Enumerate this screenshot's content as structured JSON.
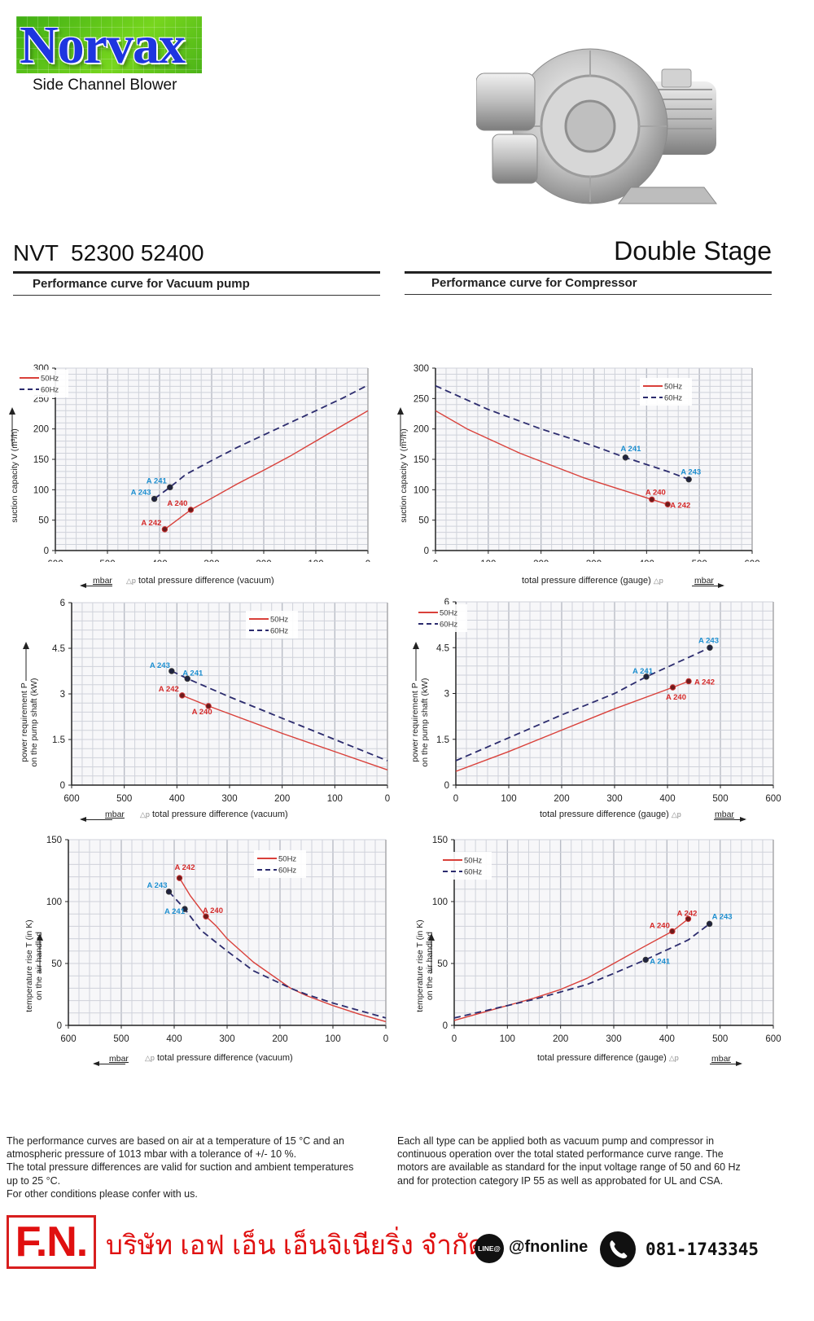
{
  "brand": {
    "logo_text": "Norvax",
    "subtitle": "Side Channel Blower"
  },
  "header": {
    "model": "NVT  52300 52400",
    "stage": "Double Stage",
    "vacuum_section": "Performance curve for Vacuum pump",
    "compressor_section": "Performance curve for Compressor"
  },
  "axis_text": {
    "flow_ylabel": "suction capacity V (m³/h)",
    "power_ylabel_1": "power requirement P",
    "power_ylabel_2": "on the pump shaft (kW)",
    "temp_ylabel_1": "temperature rise T (in K)",
    "temp_ylabel_2": "on the air handled",
    "vacuum_xlabel": "total pressure difference (vacuum)",
    "gauge_xlabel": "total pressure difference (gauge)",
    "delta_p": "△p",
    "unit": "mbar"
  },
  "chart_data": [
    {
      "id": "vacuum-flow",
      "type": "line",
      "title": "Performance curve for Vacuum pump - suction capacity",
      "xlabel": "total pressure difference (vacuum) Δp mbar",
      "ylabel": "suction capacity V (m³/h)",
      "xlim": [
        600,
        0
      ],
      "x_reversed": true,
      "ylim": [
        0,
        300
      ],
      "xticks": [
        600,
        500,
        400,
        300,
        200,
        100,
        0
      ],
      "yticks": [
        0,
        50,
        100,
        150,
        200,
        250,
        300
      ],
      "grid": true,
      "legend_position": "top-left",
      "series": [
        {
          "name": "50Hz",
          "style": "solid",
          "color": "#d9403a",
          "x": [
            390,
            340,
            300,
            250,
            200,
            150,
            100,
            50,
            0
          ],
          "y": [
            35,
            67,
            86,
            110,
            132,
            155,
            180,
            205,
            230
          ]
        },
        {
          "name": "60Hz",
          "style": "dashed",
          "color": "#2c2c6e",
          "x": [
            410,
            380,
            350,
            300,
            250,
            200,
            150,
            100,
            50,
            0
          ],
          "y": [
            85,
            104,
            125,
            148,
            170,
            190,
            210,
            230,
            250,
            272
          ]
        }
      ],
      "points": [
        {
          "label": "A 240",
          "x": 340,
          "y": 67,
          "series": "50Hz"
        },
        {
          "label": "A 242",
          "x": 390,
          "y": 35,
          "series": "50Hz"
        },
        {
          "label": "A 241",
          "x": 380,
          "y": 104,
          "series": "60Hz"
        },
        {
          "label": "A 243",
          "x": 410,
          "y": 85,
          "series": "60Hz"
        }
      ]
    },
    {
      "id": "compressor-flow",
      "type": "line",
      "title": "Performance curve for Compressor - suction capacity",
      "xlabel": "total pressure difference (gauge) Δp mbar",
      "ylabel": "suction capacity V (m³/h)",
      "xlim": [
        0,
        600
      ],
      "x_reversed": false,
      "ylim": [
        0,
        300
      ],
      "xticks": [
        0,
        100,
        200,
        300,
        400,
        500,
        600
      ],
      "yticks": [
        0,
        50,
        100,
        150,
        200,
        250,
        300
      ],
      "grid": true,
      "legend_position": "top-right",
      "series": [
        {
          "name": "50Hz",
          "style": "solid",
          "color": "#d9403a",
          "x": [
            0,
            60,
            160,
            280,
            410,
            440
          ],
          "y": [
            230,
            200,
            160,
            120,
            84,
            76
          ]
        },
        {
          "name": "60Hz",
          "style": "dashed",
          "color": "#2c2c6e",
          "x": [
            0,
            100,
            200,
            300,
            360,
            440,
            480
          ],
          "y": [
            271,
            232,
            200,
            172,
            153,
            130,
            117
          ]
        }
      ],
      "points": [
        {
          "label": "A 240",
          "x": 410,
          "y": 84,
          "series": "50Hz"
        },
        {
          "label": "A 242",
          "x": 440,
          "y": 76,
          "series": "50Hz"
        },
        {
          "label": "A 241",
          "x": 360,
          "y": 153,
          "series": "60Hz"
        },
        {
          "label": "A 243",
          "x": 480,
          "y": 117,
          "series": "60Hz"
        }
      ]
    },
    {
      "id": "vacuum-power",
      "type": "line",
      "title": "Performance curve for Vacuum pump - power requirement",
      "xlabel": "total pressure difference (vacuum) Δp mbar",
      "ylabel": "power requirement P on the pump shaft (kW)",
      "xlim": [
        600,
        0
      ],
      "x_reversed": true,
      "ylim": [
        0,
        6
      ],
      "xticks": [
        600,
        500,
        400,
        300,
        200,
        100,
        0
      ],
      "yticks": [
        0,
        1.5,
        3,
        4.5,
        6
      ],
      "grid": true,
      "legend_position": "top-right",
      "series": [
        {
          "name": "50Hz",
          "style": "solid",
          "color": "#d9403a",
          "x": [
            390,
            340,
            200,
            100,
            0
          ],
          "y": [
            2.95,
            2.6,
            1.7,
            1.1,
            0.5
          ]
        },
        {
          "name": "60Hz",
          "style": "dashed",
          "color": "#2c2c6e",
          "x": [
            410,
            380,
            300,
            200,
            100,
            0
          ],
          "y": [
            3.75,
            3.5,
            2.9,
            2.2,
            1.5,
            0.8
          ]
        }
      ],
      "points": [
        {
          "label": "A 242",
          "x": 390,
          "y": 2.95,
          "series": "50Hz"
        },
        {
          "label": "A 240",
          "x": 340,
          "y": 2.6,
          "series": "50Hz"
        },
        {
          "label": "A 243",
          "x": 410,
          "y": 3.75,
          "series": "60Hz"
        },
        {
          "label": "A 241",
          "x": 380,
          "y": 3.5,
          "series": "60Hz"
        }
      ]
    },
    {
      "id": "compressor-power",
      "type": "line",
      "title": "Performance curve for Compressor - power requirement",
      "xlabel": "total pressure difference (gauge) Δp mbar",
      "ylabel": "power requirement P on the pump shaft (kW)",
      "xlim": [
        0,
        600
      ],
      "x_reversed": false,
      "ylim": [
        0,
        6
      ],
      "xticks": [
        0,
        100,
        200,
        300,
        400,
        500,
        600
      ],
      "yticks": [
        0,
        1.5,
        3,
        4.5,
        6
      ],
      "grid": true,
      "legend_position": "top-left",
      "series": [
        {
          "name": "50Hz",
          "style": "solid",
          "color": "#d9403a",
          "x": [
            0,
            100,
            200,
            300,
            410,
            440
          ],
          "y": [
            0.45,
            1.1,
            1.8,
            2.5,
            3.2,
            3.4
          ]
        },
        {
          "name": "60Hz",
          "style": "dashed",
          "color": "#2c2c6e",
          "x": [
            0,
            100,
            200,
            300,
            360,
            480
          ],
          "y": [
            0.8,
            1.55,
            2.3,
            3.0,
            3.55,
            4.5
          ]
        }
      ],
      "points": [
        {
          "label": "A 240",
          "x": 410,
          "y": 3.2,
          "series": "50Hz"
        },
        {
          "label": "A 242",
          "x": 440,
          "y": 3.4,
          "series": "50Hz"
        },
        {
          "label": "A 241",
          "x": 360,
          "y": 3.55,
          "series": "60Hz"
        },
        {
          "label": "A 243",
          "x": 480,
          "y": 4.5,
          "series": "60Hz"
        }
      ]
    },
    {
      "id": "vacuum-temperature",
      "type": "line",
      "title": "Performance curve for Vacuum pump - temperature rise",
      "xlabel": "total pressure difference (vacuum) Δp mbar",
      "ylabel": "temperature rise T (in K) on the air handled",
      "xlim": [
        600,
        0
      ],
      "x_reversed": true,
      "ylim": [
        0,
        150
      ],
      "xticks": [
        600,
        500,
        400,
        300,
        200,
        100,
        0
      ],
      "yticks": [
        0,
        50,
        100,
        150
      ],
      "grid": true,
      "legend_position": "top-right",
      "series": [
        {
          "name": "50Hz",
          "style": "solid",
          "color": "#d9403a",
          "x": [
            390,
            370,
            340,
            320,
            300,
            250,
            180,
            150,
            100,
            50,
            0
          ],
          "y": [
            119,
            105,
            88,
            80,
            70,
            51,
            30,
            24,
            16,
            9,
            3
          ]
        },
        {
          "name": "60Hz",
          "style": "dashed",
          "color": "#2c2c6e",
          "x": [
            410,
            380,
            350,
            300,
            250,
            180,
            150,
            100,
            50,
            0
          ],
          "y": [
            108,
            94,
            77,
            60,
            44,
            30,
            25,
            18,
            12,
            6
          ]
        }
      ],
      "points": [
        {
          "label": "A 242",
          "x": 390,
          "y": 119,
          "series": "50Hz"
        },
        {
          "label": "A 240",
          "x": 340,
          "y": 88,
          "series": "50Hz"
        },
        {
          "label": "A 243",
          "x": 410,
          "y": 108,
          "series": "60Hz"
        },
        {
          "label": "A 241",
          "x": 380,
          "y": 94,
          "series": "60Hz"
        }
      ]
    },
    {
      "id": "compressor-temperature",
      "type": "line",
      "title": "Performance curve for Compressor - temperature rise",
      "xlabel": "total pressure difference (gauge) Δp mbar",
      "ylabel": "temperature rise T (in K) on the air handled",
      "xlim": [
        0,
        600
      ],
      "x_reversed": false,
      "ylim": [
        0,
        150
      ],
      "xticks": [
        0,
        100,
        200,
        300,
        400,
        500,
        600
      ],
      "yticks": [
        0,
        50,
        100,
        150
      ],
      "grid": true,
      "legend_position": "top-left",
      "series": [
        {
          "name": "50Hz",
          "style": "solid",
          "color": "#d9403a",
          "x": [
            0,
            50,
            100,
            150,
            200,
            250,
            300,
            350,
            410,
            440
          ],
          "y": [
            4,
            10,
            16,
            22,
            29,
            38,
            50,
            62,
            76,
            86
          ]
        },
        {
          "name": "60Hz",
          "style": "dashed",
          "color": "#2c2c6e",
          "x": [
            0,
            50,
            100,
            150,
            200,
            250,
            300,
            360,
            400,
            440,
            480
          ],
          "y": [
            6,
            11,
            16,
            21,
            27,
            33,
            42,
            53,
            61,
            69,
            82
          ]
        }
      ],
      "points": [
        {
          "label": "A 240",
          "x": 410,
          "y": 76,
          "series": "50Hz"
        },
        {
          "label": "A 242",
          "x": 440,
          "y": 86,
          "series": "50Hz"
        },
        {
          "label": "A 241",
          "x": 360,
          "y": 53,
          "series": "60Hz"
        },
        {
          "label": "A 243",
          "x": 480,
          "y": 82,
          "series": "60Hz"
        }
      ]
    }
  ],
  "notes": {
    "left": [
      "The performance curves are based on air at a temperature of 15 °C and an",
      "atmospheric pressure of 1013 mbar with a tolerance of +/- 10 %.",
      "The total pressure differences are valid for suction and ambient temperatures",
      "up to 25 °C.",
      "For other conditions please confer with us."
    ],
    "right": [
      "Each all type can be applied both as vacuum pump and compressor in",
      "continuous operation over the total stated performance curve range. The",
      "motors are available as standard for the input voltage range of 50 and 60 Hz",
      "and for protection category IP 55 as well as approbated for UL and CSA."
    ]
  },
  "footer": {
    "logo": "F.N.",
    "company": "บริษัท เอฟ เอ็น เอ็นจิเนียริ่ง จำกัด",
    "line_icon_text": "LINE@",
    "line_id": "@fnonline",
    "phone": "081-1743345"
  },
  "colors": {
    "series_50hz": "#d9403a",
    "series_60hz": "#2c2c6e",
    "label_50hz": "#d42a2a",
    "label_60hz": "#1e8fd0",
    "brand_red": "#e01010",
    "logo_blue": "#1e35e0",
    "logo_green": "#5cc61c"
  }
}
